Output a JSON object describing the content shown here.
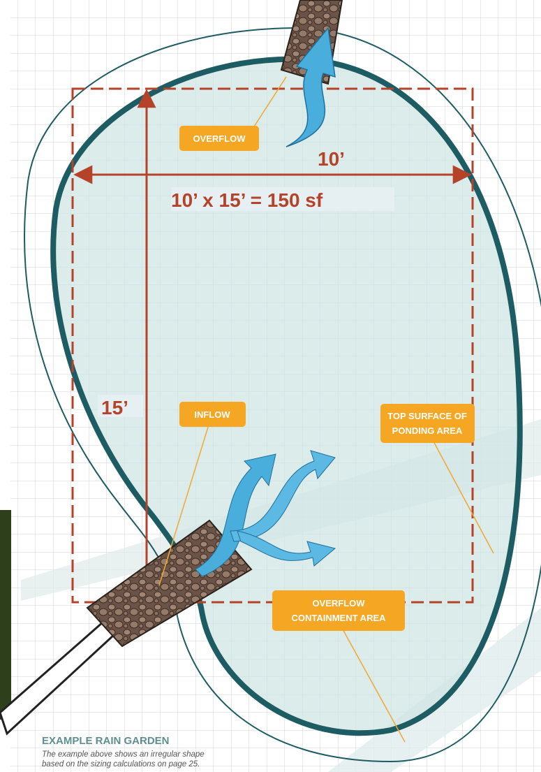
{
  "labels": {
    "overflow": "OVERFLOW",
    "inflow": "INFLOW",
    "top_surface": [
      "TOP SURFACE OF",
      "PONDING AREA"
    ],
    "containment": [
      "OVERFLOW",
      "CONTAINMENT AREA"
    ]
  },
  "dimensions": {
    "width": "10’",
    "length": "15’",
    "formula": "10’ x 15’ = 150 sf"
  },
  "caption": {
    "title": "EXAMPLE RAIN GARDEN",
    "lines": [
      "The example above shows an irregular shape",
      "based on the sizing calculations on page 25."
    ]
  }
}
